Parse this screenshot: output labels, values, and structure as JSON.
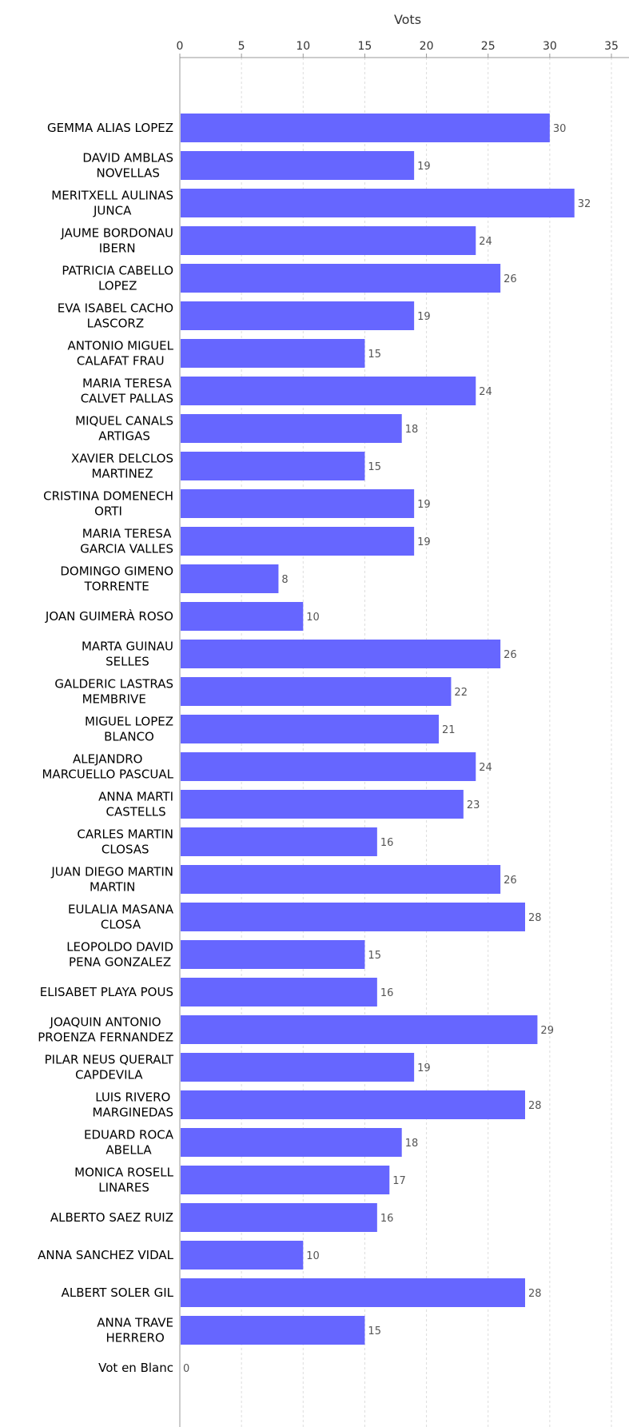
{
  "chart_data": {
    "type": "bar",
    "orientation": "horizontal",
    "xlabel": "Vots",
    "xlim": [
      0,
      35
    ],
    "xticks": [
      0,
      5,
      10,
      15,
      20,
      25,
      30,
      35
    ],
    "grid": true,
    "bar_color": "#6666ff",
    "categories": [
      [
        "GEMMA ALIAS LOPEZ"
      ],
      [
        "DAVID AMBLAS",
        "NOVELLAS"
      ],
      [
        "MERITXELL AULINAS",
        "JUNCA"
      ],
      [
        "JAUME BORDONAU",
        "IBERN"
      ],
      [
        "PATRICIA CABELLO",
        "LOPEZ"
      ],
      [
        "EVA ISABEL CACHO",
        "LASCORZ"
      ],
      [
        "ANTONIO MIGUEL",
        "CALAFAT FRAU"
      ],
      [
        "MARIA TERESA",
        "CALVET PALLAS"
      ],
      [
        "MIQUEL CANALS",
        "ARTIGAS"
      ],
      [
        "XAVIER DELCLOS",
        "MARTINEZ"
      ],
      [
        "CRISTINA DOMENECH",
        "ORTI"
      ],
      [
        "MARIA TERESA",
        "GARCIA VALLES"
      ],
      [
        "DOMINGO GIMENO",
        "TORRENTE"
      ],
      [
        "JOAN GUIMERÀ ROSO"
      ],
      [
        "MARTA GUINAU",
        "SELLES"
      ],
      [
        "GALDERIC LASTRAS",
        "MEMBRIVE"
      ],
      [
        "MIGUEL LOPEZ",
        "BLANCO"
      ],
      [
        "ALEJANDRO",
        "MARCUELLO PASCUAL"
      ],
      [
        "ANNA MARTI",
        "CASTELLS"
      ],
      [
        "CARLES MARTIN",
        "CLOSAS"
      ],
      [
        "JUAN DIEGO MARTIN",
        "MARTIN"
      ],
      [
        "EULALIA MASANA",
        "CLOSA"
      ],
      [
        "LEOPOLDO DAVID",
        "PENA GONZALEZ"
      ],
      [
        "ELISABET PLAYA POUS"
      ],
      [
        "JOAQUIN ANTONIO",
        "PROENZA FERNANDEZ"
      ],
      [
        "PILAR NEUS QUERALT",
        "CAPDEVILA"
      ],
      [
        "LUIS RIVERO",
        "MARGINEDAS"
      ],
      [
        "EDUARD ROCA",
        "ABELLA"
      ],
      [
        "MONICA ROSELL",
        "LINARES"
      ],
      [
        "ALBERTO SAEZ RUIZ"
      ],
      [
        "ANNA SANCHEZ VIDAL"
      ],
      [
        "ALBERT SOLER GIL"
      ],
      [
        "ANNA TRAVE",
        "HERRERO"
      ],
      [
        "Vot en Blanc"
      ]
    ],
    "values": [
      30,
      19,
      32,
      24,
      26,
      19,
      15,
      24,
      18,
      15,
      19,
      19,
      8,
      10,
      26,
      22,
      21,
      24,
      23,
      16,
      26,
      28,
      15,
      16,
      29,
      19,
      28,
      18,
      17,
      16,
      10,
      28,
      15,
      0
    ]
  }
}
